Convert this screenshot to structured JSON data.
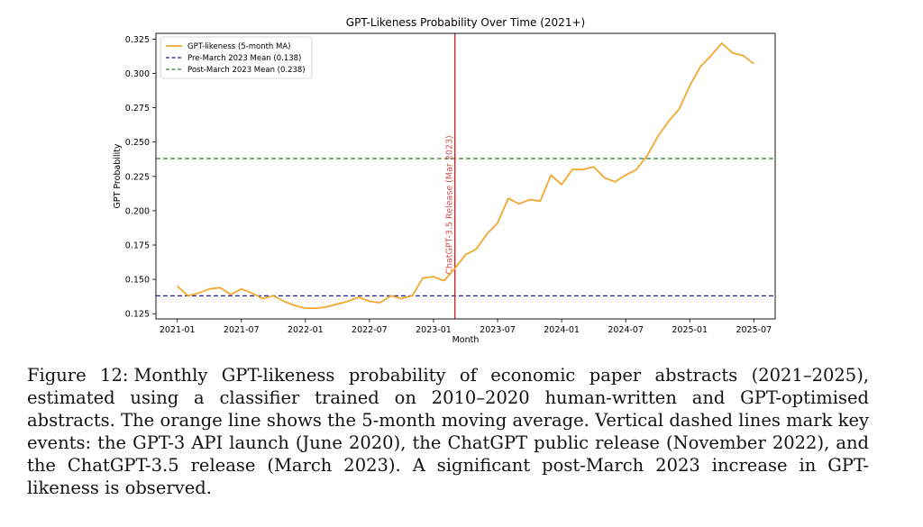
{
  "chart_data": {
    "type": "line",
    "title": "GPT-Likeness Probability Over Time (2021+)",
    "xlabel": "Month",
    "ylabel": "GPT Probability",
    "xlim": [
      "2020-11",
      "2025-09"
    ],
    "ylim": [
      0.1212,
      0.3292
    ],
    "x_ticks": [
      "2021-01",
      "2021-07",
      "2022-01",
      "2022-07",
      "2023-01",
      "2023-07",
      "2024-01",
      "2024-07",
      "2025-01",
      "2025-07"
    ],
    "y_ticks": [
      0.125,
      0.15,
      0.175,
      0.2,
      0.225,
      0.25,
      0.275,
      0.3,
      0.325
    ],
    "y_tick_labels": [
      "0.125",
      "0.150",
      "0.175",
      "0.200",
      "0.225",
      "0.250",
      "0.275",
      "0.300",
      "0.325"
    ],
    "grid": false,
    "legend_position": "top-left",
    "series": [
      {
        "name": "GPT-likeness (5-month MA)",
        "color": "#f0a830",
        "style": "solid",
        "x": [
          "2021-01",
          "2021-02",
          "2021-03",
          "2021-04",
          "2021-05",
          "2021-06",
          "2021-07",
          "2021-08",
          "2021-09",
          "2021-10",
          "2021-11",
          "2021-12",
          "2022-01",
          "2022-02",
          "2022-03",
          "2022-04",
          "2022-05",
          "2022-06",
          "2022-07",
          "2022-08",
          "2022-09",
          "2022-10",
          "2022-11",
          "2022-12",
          "2023-01",
          "2023-02",
          "2023-03",
          "2023-04",
          "2023-05",
          "2023-06",
          "2023-07",
          "2023-08",
          "2023-09",
          "2023-10",
          "2023-11",
          "2023-12",
          "2024-01",
          "2024-02",
          "2024-03",
          "2024-04",
          "2024-05",
          "2024-06",
          "2024-07",
          "2024-08",
          "2024-09",
          "2024-10",
          "2024-11",
          "2024-12",
          "2025-01",
          "2025-02",
          "2025-03",
          "2025-04",
          "2025-05",
          "2025-06",
          "2025-07"
        ],
        "values": [
          0.145,
          0.138,
          0.14,
          0.143,
          0.144,
          0.139,
          0.143,
          0.14,
          0.136,
          0.138,
          0.134,
          0.131,
          0.129,
          0.129,
          0.13,
          0.132,
          0.134,
          0.137,
          0.134,
          0.133,
          0.138,
          0.136,
          0.138,
          0.151,
          0.152,
          0.149,
          0.158,
          0.168,
          0.172,
          0.183,
          0.191,
          0.209,
          0.205,
          0.208,
          0.207,
          0.226,
          0.219,
          0.23,
          0.23,
          0.232,
          0.224,
          0.221,
          0.226,
          0.23,
          0.24,
          0.254,
          0.265,
          0.274,
          0.291,
          0.305,
          0.313,
          0.322,
          0.315,
          0.313,
          0.307
        ]
      },
      {
        "name": "Pre-March 2023 Mean (0.138)",
        "color": "#1f1fa8",
        "style": "dashed",
        "y": 0.138
      },
      {
        "name": "Post-March 2023 Mean (0.238)",
        "color": "#2e7d32",
        "style": "dashed",
        "y": 0.238
      }
    ],
    "annotations": [
      {
        "type": "vline",
        "x": "2023-03",
        "color": "#c62828",
        "label": "ChatGPT-3.5 Release (Mar 2023)"
      }
    ]
  },
  "caption": {
    "label": "Figure 12:",
    "text": "Monthly GPT-likeness probability of economic paper abstracts (2021–2025), estimated using a classifier trained on 2010–2020 human-written and GPT-optimised abstracts. The orange line shows the 5-month moving average. Vertical dashed lines mark key events: the GPT-3 API launch (June 2020), the ChatGPT public release (November 2022), and the ChatGPT-3.5 release (March 2023). A significant post-March 2023 increase in GPT-likeness is observed."
  }
}
